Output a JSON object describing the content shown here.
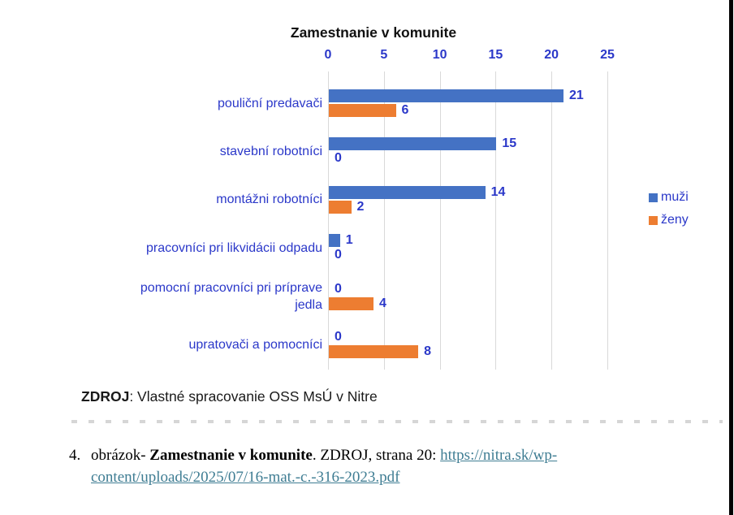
{
  "chart_data": {
    "type": "bar",
    "orientation": "horizontal",
    "title": "Zamestnanie v komunite",
    "categories": [
      "pouliční predavači",
      "stavební robotníci",
      "montážni robotníci",
      "pracovníci pri likvidácii odpadu",
      "pomocní pracovníci pri príprave jedla",
      "upratovači a pomocníci"
    ],
    "series": [
      {
        "name": "muži",
        "color": "#4472C4",
        "values": [
          21,
          15,
          14,
          1,
          0,
          0
        ]
      },
      {
        "name": "ženy",
        "color": "#ED7D31",
        "values": [
          6,
          0,
          2,
          0,
          4,
          8
        ]
      }
    ],
    "x_ticks": [
      0,
      5,
      10,
      15,
      20,
      25
    ],
    "xlim": [
      0,
      25
    ],
    "grid": true,
    "legend_position": "right",
    "data_labels": true,
    "label_color": "#2b38c9",
    "gridline_color": "#d9d9d9"
  },
  "source_note": {
    "label": "ZDROJ",
    "rest": ": Vlastné spracovanie OSS MsÚ v Nitre"
  },
  "caption": {
    "number": "4.",
    "text_before": "obrázok- ",
    "bold_title": "Zamestnanie v komunite",
    "text_after": ". ZDROJ, strana 20: ",
    "link_line1": "https://nitra.sk/wp-",
    "link_line2": "content/uploads/2025/07/16-mat.-c.-316-2023.pdf"
  }
}
